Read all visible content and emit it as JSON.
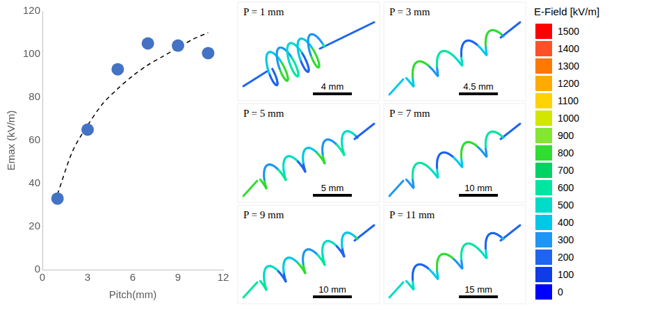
{
  "chart_data": {
    "type": "scatter",
    "x_label": "Pitch(mm)",
    "y_label": "Emax (kV/m)",
    "series": [
      {
        "type": "scatter",
        "color": "#4472c4",
        "marker": "circle",
        "x": [
          1,
          3,
          5,
          7,
          9,
          11
        ],
        "values": [
          33,
          65,
          93,
          105,
          104,
          100.5
        ]
      },
      {
        "type": "line",
        "color": "#000000",
        "line_style": "dashed",
        "x": [
          1,
          2,
          3,
          4,
          5,
          6,
          7,
          8,
          9,
          10,
          11
        ],
        "values": [
          35,
          55,
          67,
          77,
          84,
          90,
          95,
          99,
          103,
          107,
          110
        ]
      }
    ],
    "xlim": [
      0,
      12
    ],
    "xticks": [
      0,
      3,
      6,
      9,
      12
    ],
    "ylim": [
      0,
      120
    ],
    "yticks": [
      0,
      20,
      40,
      60,
      80,
      100,
      120
    ],
    "grid": false
  },
  "panels": [
    {
      "label": "P = 1 mm",
      "scale_bar": "4 mm"
    },
    {
      "label": "P = 3 mm",
      "scale_bar": "4.5 mm"
    },
    {
      "label": "P = 5 mm",
      "scale_bar": "5 mm"
    },
    {
      "label": "P = 7 mm",
      "scale_bar": "10 mm"
    },
    {
      "label": "P = 9 mm",
      "scale_bar": "10 mm"
    },
    {
      "label": "P = 11 mm",
      "scale_bar": "15 mm"
    }
  ],
  "colorbar": {
    "title": "E-Field [kV/m]",
    "ticks": [
      0,
      100,
      200,
      300,
      400,
      500,
      600,
      700,
      800,
      900,
      1000,
      1100,
      1200,
      1300,
      1400,
      1500
    ],
    "colors": [
      "#0000ff",
      "#0f3ce6",
      "#1e64f0",
      "#1e96f5",
      "#00c8e6",
      "#00dcc8",
      "#00e6a0",
      "#00d264",
      "#32dc32",
      "#82e632",
      "#d2e600",
      "#ffd200",
      "#ffaa00",
      "#ff7800",
      "#ff5028",
      "#ff0000"
    ]
  }
}
